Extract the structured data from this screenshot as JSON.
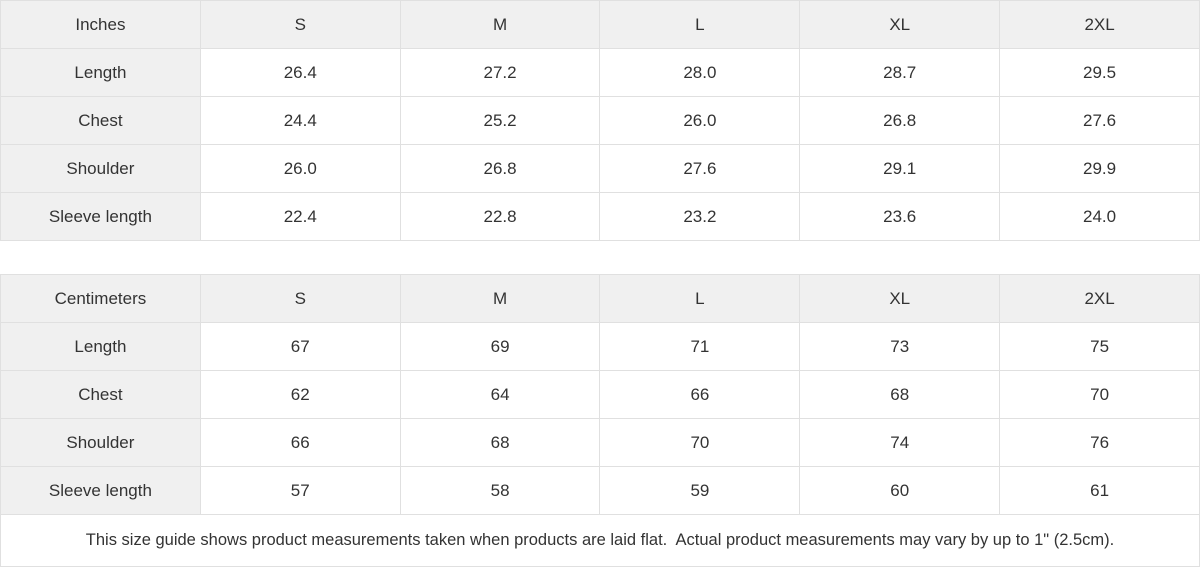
{
  "colors": {
    "label_cell_bg": "#f0f0f0",
    "value_cell_bg": "#ffffff",
    "border": "#e0e0e0",
    "text": "#333333"
  },
  "inches_table": {
    "unit_label": "Inches",
    "size_headers": [
      "S",
      "M",
      "L",
      "XL",
      "2XL"
    ],
    "rows": [
      {
        "label": "Length",
        "values": [
          "26.4",
          "27.2",
          "28.0",
          "28.7",
          "29.5"
        ]
      },
      {
        "label": "Chest",
        "values": [
          "24.4",
          "25.2",
          "26.0",
          "26.8",
          "27.6"
        ]
      },
      {
        "label": "Shoulder",
        "values": [
          "26.0",
          "26.8",
          "27.6",
          "29.1",
          "29.9"
        ]
      },
      {
        "label": "Sleeve length",
        "values": [
          "22.4",
          "22.8",
          "23.2",
          "23.6",
          "24.0"
        ]
      }
    ]
  },
  "centimeters_table": {
    "unit_label": "Centimeters",
    "size_headers": [
      "S",
      "M",
      "L",
      "XL",
      "2XL"
    ],
    "rows": [
      {
        "label": "Length",
        "values": [
          "67",
          "69",
          "71",
          "73",
          "75"
        ]
      },
      {
        "label": "Chest",
        "values": [
          "62",
          "64",
          "66",
          "68",
          "70"
        ]
      },
      {
        "label": "Shoulder",
        "values": [
          "66",
          "68",
          "70",
          "74",
          "76"
        ]
      },
      {
        "label": "Sleeve length",
        "values": [
          "57",
          "58",
          "59",
          "60",
          "61"
        ]
      }
    ]
  },
  "footer": {
    "note": "This size guide shows product measurements taken when products are laid flat.  Actual product measurements may vary by up to 1\" (2.5cm)."
  }
}
